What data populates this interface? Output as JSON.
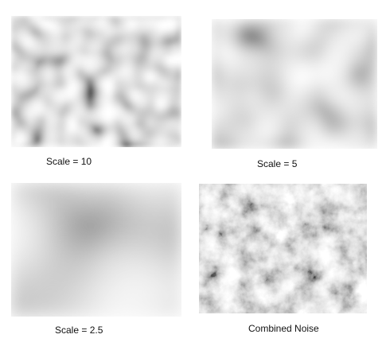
{
  "panels": [
    {
      "caption": "Scale = 10"
    },
    {
      "caption": "Scale = 5"
    },
    {
      "caption": "Scale = 2.5"
    },
    {
      "caption": "Combined Noise"
    }
  ]
}
